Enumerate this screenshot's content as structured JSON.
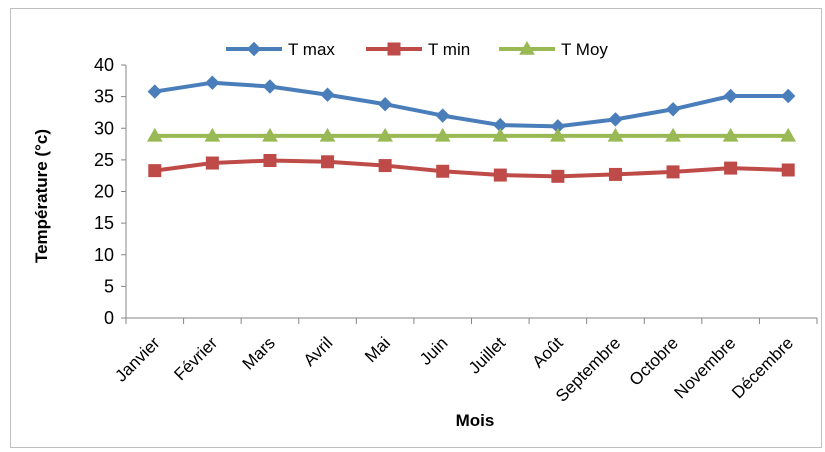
{
  "chart_data": {
    "type": "line",
    "title": "",
    "xlabel": "Mois",
    "ylabel": "Température (°c)",
    "ylim": [
      0,
      40
    ],
    "yticks": [
      0,
      5,
      10,
      15,
      20,
      25,
      30,
      35,
      40
    ],
    "grid": false,
    "legend_position": "top",
    "categories": [
      "Janvier",
      "Février",
      "Mars",
      "Avril",
      "Mai",
      "Juin",
      "Juillet",
      "Août",
      "Septembre",
      "Octobre",
      "Novembre",
      "Décembre"
    ],
    "series": [
      {
        "name": "T max",
        "color": "#4a7ebb",
        "marker": "diamond",
        "values": [
          35.8,
          37.2,
          36.6,
          35.3,
          33.8,
          32.0,
          30.5,
          30.3,
          31.4,
          33.0,
          35.1,
          35.1
        ]
      },
      {
        "name": "T min",
        "color": "#be4b48",
        "marker": "square",
        "values": [
          23.3,
          24.5,
          24.9,
          24.7,
          24.1,
          23.2,
          22.6,
          22.4,
          22.7,
          23.1,
          23.7,
          23.4
        ]
      },
      {
        "name": "T Moy",
        "color": "#98b954",
        "marker": "triangle",
        "values": [
          28.8,
          28.8,
          28.8,
          28.8,
          28.8,
          28.8,
          28.8,
          28.8,
          28.8,
          28.8,
          28.8,
          28.8
        ]
      }
    ]
  }
}
